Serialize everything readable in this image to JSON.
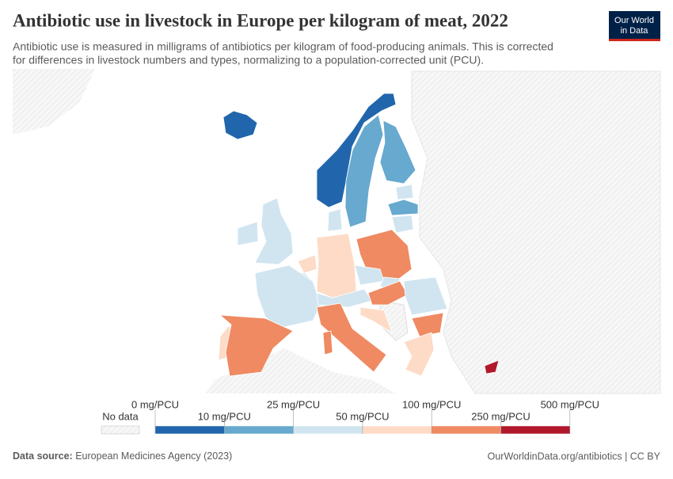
{
  "header": {
    "title": "Antibiotic use in livestock in Europe per kilogram of meat, 2022",
    "subtitle": [
      "Antibiotic use is measured in milligrams of antibiotics per kilogram of food-producing animals. This is corrected",
      "for differences in livestock numbers and types, normalizing to a population-corrected unit (PCU)."
    ],
    "logo": [
      "Our World",
      "in Data"
    ]
  },
  "legend": {
    "no_data": "No data",
    "ticks": [
      "0 mg/PCU",
      "10 mg/PCU",
      "25 mg/PCU",
      "50 mg/PCU",
      "100 mg/PCU",
      "250 mg/PCU",
      "500 mg/PCU"
    ],
    "colors": [
      "#2166ac",
      "#67a9cf",
      "#d1e5f0",
      "#fddbc7",
      "#ef8a62",
      "#b2182b"
    ]
  },
  "footer": {
    "source_label": "Data source:",
    "source": "European Medicines Agency (2023)",
    "link": "OurWorldinData.org/antibiotics | CC BY"
  }
}
